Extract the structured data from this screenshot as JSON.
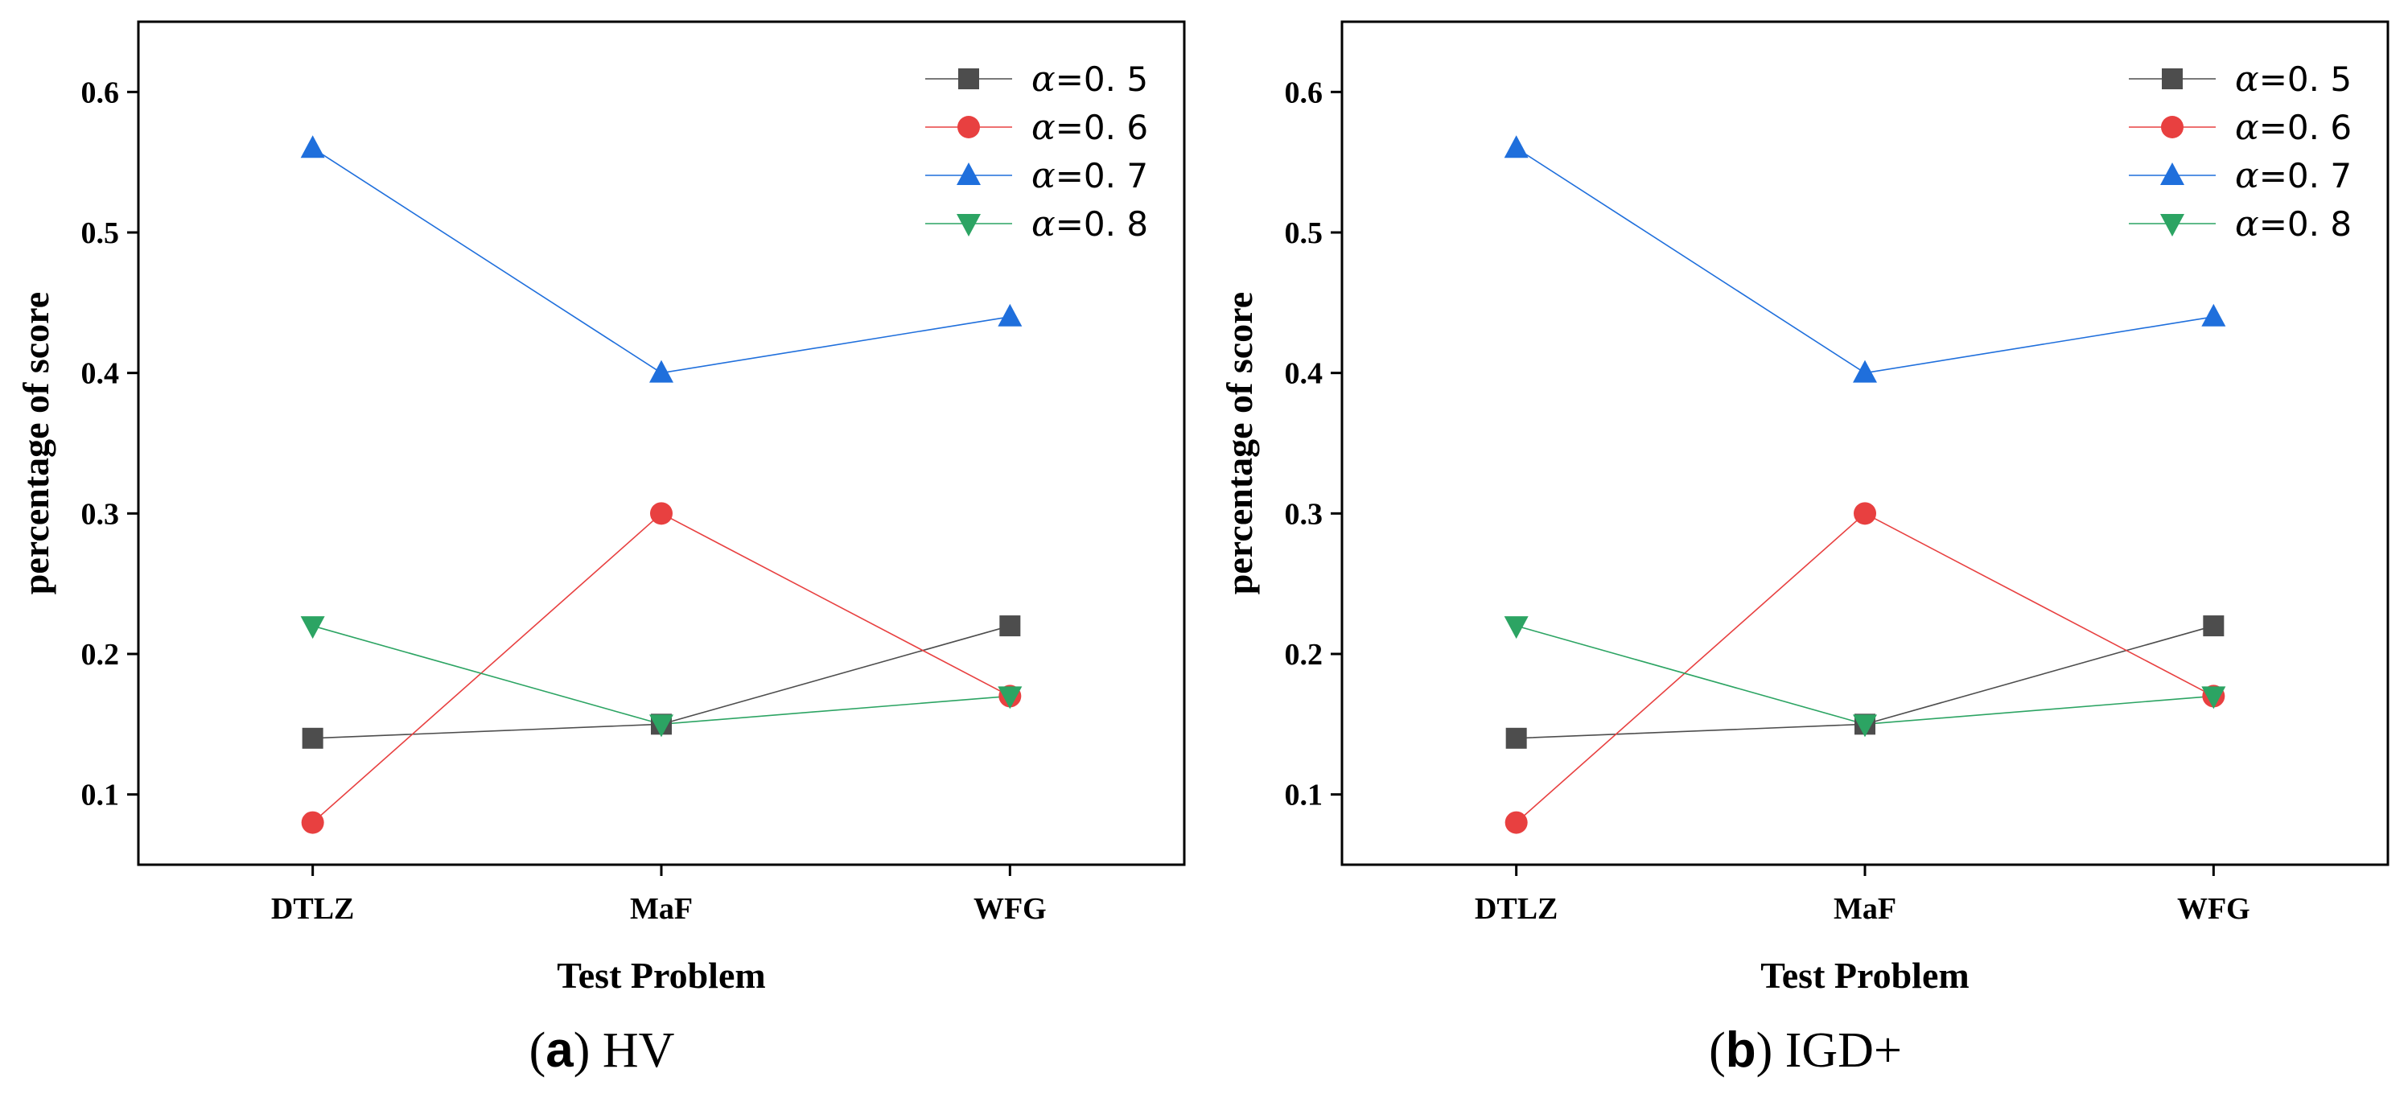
{
  "chart_data": [
    {
      "type": "line",
      "panel_label": "a",
      "caption": "HV",
      "xlabel": "Test Problem",
      "ylabel": "percentage of score",
      "categories": [
        "DTLZ",
        "MaF",
        "WFG"
      ],
      "ylim": [
        0.05,
        0.65
      ],
      "yticks": [
        "0.1",
        "0.2",
        "0.3",
        "0.4",
        "0.5",
        "0.6"
      ],
      "series": [
        {
          "name": "α=0.5",
          "symbol": "α",
          "value_label": "=0. 5",
          "color": "#4d4d4d",
          "marker": "square",
          "values": [
            0.14,
            0.15,
            0.22
          ]
        },
        {
          "name": "α=0.6",
          "symbol": "α",
          "value_label": "=0. 6",
          "color": "#e84040",
          "marker": "circle",
          "values": [
            0.08,
            0.3,
            0.17
          ]
        },
        {
          "name": "α=0.7",
          "symbol": "α",
          "value_label": "=0. 7",
          "color": "#1f6fdc",
          "marker": "triangle-up",
          "values": [
            0.56,
            0.4,
            0.44
          ]
        },
        {
          "name": "α=0.8",
          "symbol": "α",
          "value_label": "=0. 8",
          "color": "#2ca463",
          "marker": "triangle-down",
          "values": [
            0.22,
            0.15,
            0.17
          ]
        }
      ],
      "legend_position": "top-right"
    },
    {
      "type": "line",
      "panel_label": "b",
      "caption": "IGD+",
      "xlabel": "Test Problem",
      "ylabel": "percentage of score",
      "categories": [
        "DTLZ",
        "MaF",
        "WFG"
      ],
      "ylim": [
        0.05,
        0.65
      ],
      "yticks": [
        "0.1",
        "0.2",
        "0.3",
        "0.4",
        "0.5",
        "0.6"
      ],
      "series": [
        {
          "name": "α=0.5",
          "symbol": "α",
          "value_label": "=0. 5",
          "color": "#4d4d4d",
          "marker": "square",
          "values": [
            0.14,
            0.15,
            0.22
          ]
        },
        {
          "name": "α=0.6",
          "symbol": "α",
          "value_label": "=0. 6",
          "color": "#e84040",
          "marker": "circle",
          "values": [
            0.08,
            0.3,
            0.17
          ]
        },
        {
          "name": "α=0.7",
          "symbol": "α",
          "value_label": "=0. 7",
          "color": "#1f6fdc",
          "marker": "triangle-up",
          "values": [
            0.56,
            0.4,
            0.44
          ]
        },
        {
          "name": "α=0.8",
          "symbol": "α",
          "value_label": "=0. 8",
          "color": "#2ca463",
          "marker": "triangle-down",
          "values": [
            0.22,
            0.15,
            0.17
          ]
        }
      ],
      "legend_position": "top-right"
    }
  ]
}
